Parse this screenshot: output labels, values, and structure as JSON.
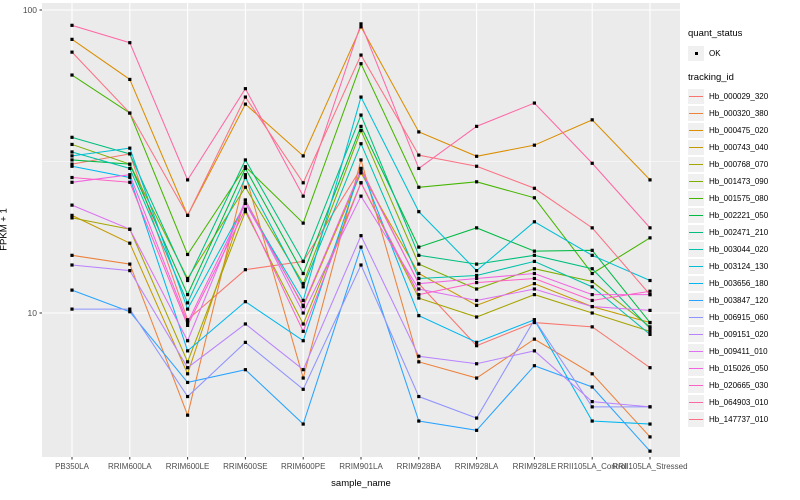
{
  "figure": {
    "background": "#FFFFFF",
    "panel_background": "#EBEBEB",
    "grid_color": "#FFFFFF",
    "tick_mark_color": "#333333",
    "tick_label_color": "#4D4D4D",
    "axis_title_color": "#000000",
    "point_color": "#000000",
    "legend_key_fill": "#F0F0F0"
  },
  "chart_data": {
    "type": "line",
    "title": "",
    "xlabel": "sample_name",
    "ylabel": "FPKM + 1",
    "y_scale": "log10",
    "y_ticks": [
      100,
      10
    ],
    "y_minor_gridlines": [
      31.62
    ],
    "ylim": [
      3.3,
      105
    ],
    "grid": "on",
    "legend_position": "right",
    "point_marker": "small-black-square",
    "categories": [
      "PB350LA",
      "RRIM600LA",
      "RRIM600LE",
      "RRIM600SE",
      "RRIM600PE",
      "RRIM901LA",
      "RRIM928BA",
      "RRIM928LA",
      "RRIM928LE",
      "RRII105LA_Control",
      "RRII105LA_Stressed"
    ],
    "series": [
      {
        "name": "Hb_000029_320",
        "color": "#F8766D",
        "values": [
          31,
          33.5,
          9.5,
          13.9,
          14.8,
          30,
          12.5,
          7.8,
          9.3,
          9,
          6.6
        ]
      },
      {
        "name": "Hb_000320_380",
        "color": "#EC823C",
        "values": [
          15.5,
          14.5,
          4.6,
          28.6,
          6.1,
          32,
          6.9,
          6.1,
          8.2,
          6.3,
          3.9
        ]
      },
      {
        "name": "Hb_000475_020",
        "color": "#DB8E00",
        "values": [
          80,
          59,
          21,
          48.9,
          33,
          88,
          39.6,
          32.9,
          35.8,
          43.4,
          27.5
        ]
      },
      {
        "name": "Hb_000743_040",
        "color": "#C49A00",
        "values": [
          21,
          17,
          6.3,
          23.6,
          10.5,
          29,
          13.5,
          10.6,
          12.5,
          10.5,
          9.3
        ]
      },
      {
        "name": "Hb_000768_070",
        "color": "#A6A400",
        "values": [
          20.6,
          18.9,
          6.9,
          21.6,
          9.2,
          26.9,
          11.2,
          9.7,
          11.5,
          10,
          8.7
        ]
      },
      {
        "name": "Hb_001473_090",
        "color": "#7FAD00",
        "values": [
          36,
          31,
          13,
          26,
          12.5,
          40,
          14.5,
          12,
          14,
          12.7,
          9
        ]
      },
      {
        "name": "Hb_001575_080",
        "color": "#45B500",
        "values": [
          61,
          45.7,
          15.6,
          30.4,
          19.8,
          66.5,
          26,
          27.1,
          24,
          13.5,
          17.7
        ]
      },
      {
        "name": "Hb_002221_050",
        "color": "#00BA42",
        "values": [
          32,
          31,
          11.5,
          30,
          13.5,
          41.3,
          16.5,
          19.1,
          16,
          16.1,
          9.3
        ]
      },
      {
        "name": "Hb_002471_210",
        "color": "#00BF7D",
        "values": [
          38,
          33.5,
          12.8,
          32,
          14.8,
          45,
          15.5,
          14.5,
          15.5,
          14,
          8.9
        ]
      },
      {
        "name": "Hb_003044_020",
        "color": "#00C1AB",
        "values": [
          34,
          30,
          10.8,
          28,
          12.2,
          36.2,
          13,
          13.3,
          14.8,
          12.2,
          8.5
        ]
      },
      {
        "name": "Hb_003124_130",
        "color": "#00BFD5",
        "values": [
          33,
          35,
          10.3,
          23,
          11,
          51.6,
          21.6,
          13.8,
          20,
          15.5,
          12.8
        ]
      },
      {
        "name": "Hb_003656_180",
        "color": "#00B7F0",
        "values": [
          30.5,
          28,
          7.5,
          10.9,
          8.1,
          30,
          9.8,
          8,
          9.5,
          4.4,
          4.3
        ]
      },
      {
        "name": "Hb_003847_120",
        "color": "#29A3FF",
        "values": [
          11.9,
          10.1,
          5.9,
          6.5,
          4.3,
          16.5,
          4.4,
          4.1,
          6.7,
          5.7,
          3.5
        ]
      },
      {
        "name": "Hb_006915_060",
        "color": "#8F93FF",
        "values": [
          10.3,
          10.3,
          5.3,
          8,
          5.6,
          14.4,
          5.3,
          4.5,
          9.5,
          4.9,
          4.9
        ]
      },
      {
        "name": "Hb_009151_020",
        "color": "#B983FF",
        "values": [
          14.4,
          13.8,
          6.6,
          9.2,
          6.5,
          18,
          7.2,
          6.8,
          7.5,
          5.1,
          4.9
        ]
      },
      {
        "name": "Hb_009411_010",
        "color": "#DD71F2",
        "values": [
          22.7,
          18.9,
          8.1,
          23.6,
          10,
          24.3,
          12,
          11,
          12,
          10.5,
          10.2
        ]
      },
      {
        "name": "Hb_015026_050",
        "color": "#F164E2",
        "values": [
          27,
          28.6,
          9.3,
          23,
          10.6,
          29.7,
          12.5,
          13,
          13.5,
          11.5,
          11.5
        ]
      },
      {
        "name": "Hb_020665_030",
        "color": "#FF61C7",
        "values": [
          28,
          27,
          9.1,
          22,
          8.7,
          26.9,
          11.5,
          12.6,
          13,
          11,
          11.8
        ]
      },
      {
        "name": "Hb_064903_010",
        "color": "#FF67A5",
        "values": [
          89,
          78,
          27.5,
          55,
          24.3,
          90,
          30,
          41.3,
          49.3,
          31.2,
          19.1
        ]
      },
      {
        "name": "Hb_147737_010",
        "color": "#FB7284",
        "values": [
          72.6,
          45.7,
          21,
          51.6,
          26.9,
          71,
          33.2,
          30.5,
          25.8,
          19.1,
          11.5
        ]
      }
    ],
    "legend": {
      "quant_status_title": "quant_status",
      "quant_status_items": [
        "OK"
      ],
      "tracking_id_title": "tracking_id"
    }
  }
}
